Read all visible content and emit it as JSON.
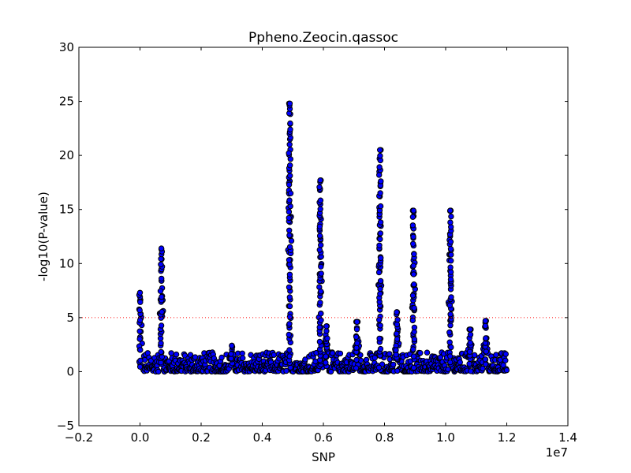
{
  "chart_data": {
    "type": "scatter",
    "title": "Ppheno.Zeocin.qassoc",
    "xlabel": "SNP",
    "ylabel": "-log10(P-value)",
    "x_offset_label": "1e7",
    "xlim": [
      -2000000,
      14000000
    ],
    "ylim": [
      -5,
      30
    ],
    "x_ticks": [
      -2000000,
      0,
      2000000,
      4000000,
      6000000,
      8000000,
      10000000,
      12000000,
      14000000
    ],
    "x_tick_labels": [
      "−0.2",
      "0.0",
      "0.2",
      "0.4",
      "0.6",
      "0.8",
      "1.0",
      "1.2",
      "1.4"
    ],
    "y_ticks": [
      -5,
      0,
      5,
      10,
      15,
      20,
      25,
      30
    ],
    "y_tick_labels": [
      "−5",
      "0",
      "5",
      "10",
      "15",
      "20",
      "25",
      "30"
    ],
    "grid": false,
    "threshold": {
      "y": 5,
      "color": "#ff0000",
      "style": "dotted"
    },
    "marker_fill": "#0000ff",
    "marker_edge": "#000000",
    "x_range": [
      0,
      12000000
    ],
    "peaks": [
      {
        "x": 0,
        "height": 7.3
      },
      {
        "x": 700000,
        "height": 11.4
      },
      {
        "x": 3000000,
        "height": 2.4
      },
      {
        "x": 4900000,
        "height": 24.8
      },
      {
        "x": 5900000,
        "height": 17.7
      },
      {
        "x": 6100000,
        "height": 4.2
      },
      {
        "x": 7100000,
        "height": 4.6
      },
      {
        "x": 7850000,
        "height": 20.5
      },
      {
        "x": 8400000,
        "height": 5.5
      },
      {
        "x": 8950000,
        "height": 14.9
      },
      {
        "x": 10150000,
        "height": 14.9
      },
      {
        "x": 10800000,
        "height": 3.9
      },
      {
        "x": 11300000,
        "height": 4.7
      }
    ]
  }
}
